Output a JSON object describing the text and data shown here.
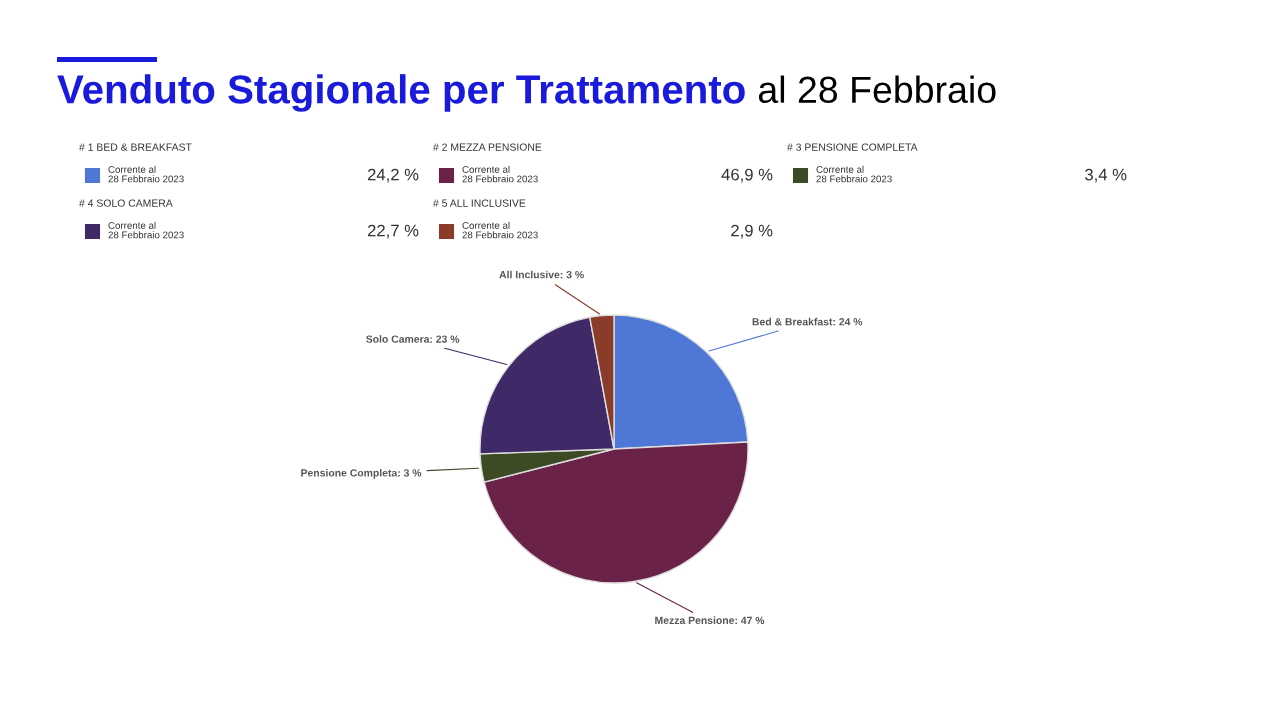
{
  "chart_data": [
    {
      "type": "other",
      "title": "Venduto Stagionale per Trattamento",
      "subtitle": "al 28 Febbraio",
      "categories": [
        "# 1 BED & BREAKFAST",
        "# 2 MEZZA PENSIONE",
        "# 3 PENSIONE COMPLETA",
        "# 4 SOLO CAMERA",
        "# 5 ALL INCLUSIVE"
      ],
      "colors": [
        "#4f77d6",
        "#6b2249",
        "#3d4a26",
        "#3f2966",
        "#8a3b2a"
      ],
      "value_labels": [
        "24,2 %",
        "46,9 %",
        "3,4 %",
        "22,7 %",
        "2,9 %"
      ],
      "annotations": [
        "Corrente al\n28 Febbraio 2023",
        "Corrente al\n28 Febbraio 2023",
        "Corrente al\n28 Febbraio 2023",
        "Corrente al\n28 Febbraio 2023",
        "Corrente al\n28 Febbraio 2023"
      ]
    },
    {
      "type": "pie",
      "categories": [
        "Bed & Breakfast",
        "Mezza Pensione",
        "Pensione Completa",
        "Solo Camera",
        "All Inclusive"
      ],
      "values": [
        24.2,
        46.9,
        3.4,
        22.7,
        2.9
      ],
      "colors": [
        "#4f77d6",
        "#6b2249",
        "#3d4a26",
        "#3f2966",
        "#8a3b2a"
      ],
      "value_labels": [
        "24 %",
        "47 %",
        "3 %",
        "23 %",
        "3 %"
      ]
    }
  ]
}
